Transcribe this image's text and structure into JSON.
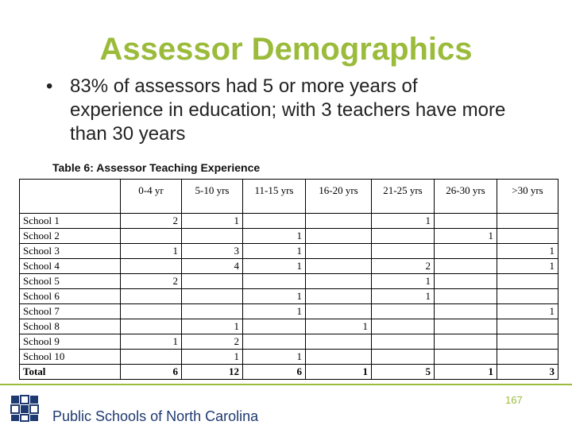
{
  "title": "Assessor Demographics",
  "bullet": "83% of assessors had 5 or more years of experience in education; with 3 teachers have more than 30 years",
  "table": {
    "caption": "Table 6: Assessor Teaching Experience",
    "columns": [
      "0-4 yr",
      "5-10 yrs",
      "11-15 yrs",
      "16-20 yrs",
      "21-25 yrs",
      "26-30 yrs",
      ">30 yrs"
    ],
    "rows": [
      {
        "label": "School 1",
        "values": [
          "2",
          "1",
          "",
          "",
          "1",
          "",
          ""
        ]
      },
      {
        "label": "School 2",
        "values": [
          "",
          "",
          "1",
          "",
          "",
          "1",
          ""
        ]
      },
      {
        "label": "School 3",
        "values": [
          "1",
          "3",
          "1",
          "",
          "",
          "",
          "1"
        ]
      },
      {
        "label": "School 4",
        "values": [
          "",
          "4",
          "1",
          "",
          "2",
          "",
          "1"
        ]
      },
      {
        "label": "School 5",
        "values": [
          "2",
          "",
          "",
          "",
          "1",
          "",
          ""
        ]
      },
      {
        "label": "School 6",
        "values": [
          "",
          "",
          "1",
          "",
          "1",
          "",
          ""
        ]
      },
      {
        "label": "School 7",
        "values": [
          "",
          "",
          "1",
          "",
          "",
          "",
          "1"
        ]
      },
      {
        "label": "School 8",
        "values": [
          "",
          "1",
          "",
          "1",
          "",
          "",
          ""
        ]
      },
      {
        "label": "School 9",
        "values": [
          "1",
          "2",
          "",
          "",
          "",
          "",
          ""
        ]
      },
      {
        "label": "School 10",
        "values": [
          "",
          "1",
          "1",
          "",
          "",
          "",
          ""
        ]
      }
    ],
    "total": {
      "label": "Total",
      "values": [
        "6",
        "12",
        "6",
        "1",
        "5",
        "1",
        "3"
      ]
    }
  },
  "footer": {
    "organization": "Public Schools of North Carolina",
    "page_number": "167"
  },
  "colors": {
    "accent": "#9bbb3b",
    "org_blue": "#1f3a70"
  }
}
